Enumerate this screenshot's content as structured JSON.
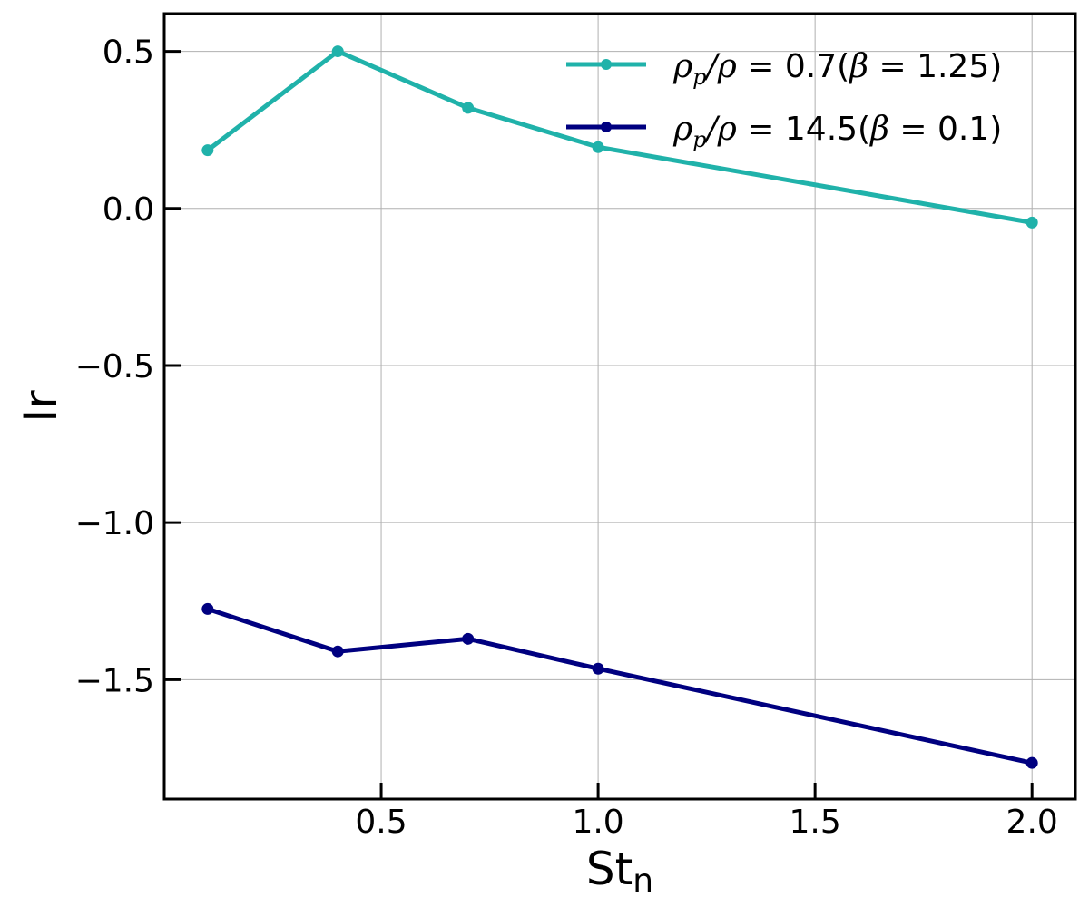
{
  "chart_data": {
    "type": "line",
    "title": "",
    "xlabel": "St",
    "xlabel_sub": "n",
    "ylabel": "Ir",
    "xlim": [
      0.0,
      2.1
    ],
    "ylim": [
      -1.88,
      0.62
    ],
    "xticks": [
      0.5,
      1.0,
      1.5,
      2.0
    ],
    "xtick_labels": [
      "0.5",
      "1.0",
      "1.5",
      "2.0"
    ],
    "yticks": [
      0.5,
      0.0,
      -0.5,
      -1.0,
      -1.5
    ],
    "ytick_labels": [
      "0.5",
      "0.0",
      "−0.5",
      "−1.0",
      "−1.5"
    ],
    "grid": true,
    "legend_position": "top-right",
    "series": [
      {
        "name": "ρp/ρ = 0.7(β = 1.25)",
        "label_parts": {
          "a": "ρ",
          "sub": "p",
          "b": "/ρ",
          "c": " = 0.7(",
          "d": "β",
          "e": " = 1.25)"
        },
        "color": "#20b2aa",
        "x": [
          0.1,
          0.4,
          0.7,
          1.0,
          2.0
        ],
        "y": [
          0.185,
          0.5,
          0.32,
          0.195,
          -0.045
        ]
      },
      {
        "name": "ρp/ρ = 14.5(β = 0.1)",
        "label_parts": {
          "a": "ρ",
          "sub": "p",
          "b": "/ρ",
          "c": " = 14.5(",
          "d": "β",
          "e": " = 0.1)"
        },
        "color": "#000080",
        "x": [
          0.1,
          0.4,
          0.7,
          1.0,
          2.0
        ],
        "y": [
          -1.275,
          -1.41,
          -1.37,
          -1.465,
          -1.765
        ]
      }
    ]
  }
}
